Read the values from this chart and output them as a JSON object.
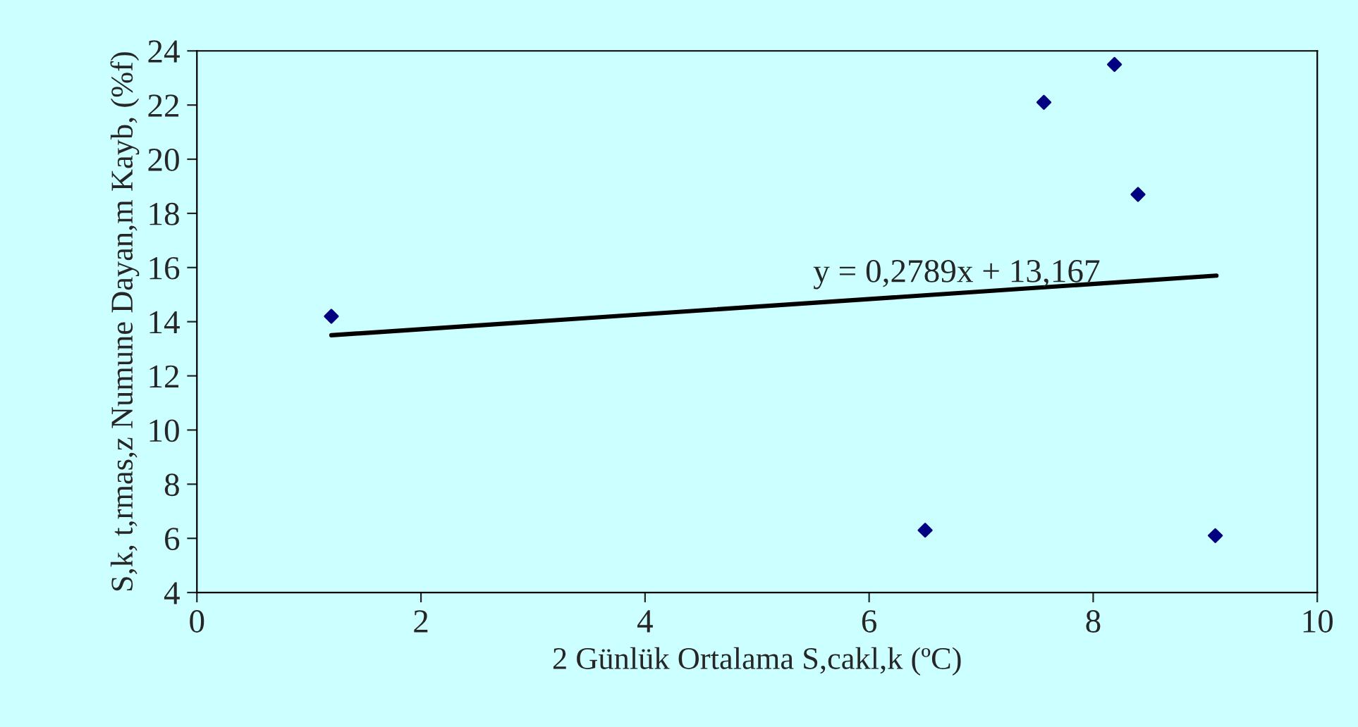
{
  "chart_data": {
    "type": "scatter",
    "xlabel": "2 Günlük Ortalama S,cakl,k (ºC)",
    "ylabel": "S,k, t,rmas,z Numune Dayan,m Kayb, (%f)",
    "series": [
      {
        "color": "#000080",
        "marker": "diamond",
        "x": [
          1.2,
          6.5,
          7.56,
          8.19,
          8.4,
          9.09
        ],
        "values": [
          14.2,
          6.3,
          22.1,
          23.5,
          18.7,
          6.1
        ]
      },
      {
        "type": "line",
        "color": "#000000",
        "marker": "none",
        "x": [
          1.2,
          9.1
        ],
        "values": [
          13.5,
          15.7
        ]
      }
    ],
    "annotations": [
      "y = 0,2789x + 13,167"
    ],
    "xlim": [
      0,
      10
    ],
    "xticks": [
      0,
      2,
      4,
      6,
      8,
      10
    ],
    "ylim": [
      4,
      24
    ],
    "yticks": [
      4,
      6,
      8,
      10,
      12,
      14,
      16,
      18,
      20,
      22,
      24
    ],
    "grid": false,
    "legend": false
  }
}
